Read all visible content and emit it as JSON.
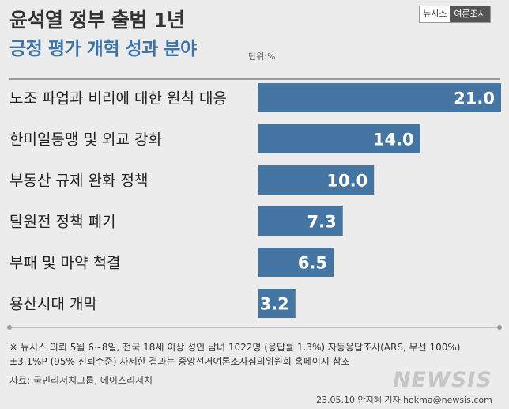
{
  "header": {
    "title": "윤석열 정부 출범 1년",
    "subtitle": "긍정 평가 개혁 성과 분야",
    "unit": "단위:%"
  },
  "brand": {
    "name": "뉴시스",
    "tag": "여론조사"
  },
  "chart_data": {
    "type": "bar",
    "orientation": "horizontal",
    "title": "긍정 평가 개혁 성과 분야",
    "unit": "%",
    "categories": [
      "노조 파업과 비리에 대한 원칙 대응",
      "한미일동맹 및 외교 강화",
      "부동산 규제 완화 정책",
      "탈원전 정책 폐기",
      "부패 및 마약 척결",
      "용산시대 개막"
    ],
    "values": [
      21.0,
      14.0,
      10.0,
      7.3,
      6.5,
      3.2
    ],
    "value_labels": [
      "21.0",
      "14.0",
      "10.0",
      "7.3",
      "6.5",
      "3.2"
    ],
    "xlim": [
      0,
      21.0
    ],
    "bar_color": "#4575a2",
    "value_label_color": "#ffffff"
  },
  "notes": [
    "※ 뉴시스 의뢰 5월 6~8일, 전국 18세 이상 성인 남녀 1022명 (응답률 1.3%) 자동응답조사(ARS, 무선 100%)",
    "±3.1%P (95% 신뢰수준) 자세한 결과는 중앙선거여론조사심의위원회 홈페이지 참조"
  ],
  "source": "자료: 국민리서치그룹, 에이스리서치",
  "credit": "23.05.10 안지혜 기자 hokma@newsis.com",
  "watermark": "NEWSIS"
}
